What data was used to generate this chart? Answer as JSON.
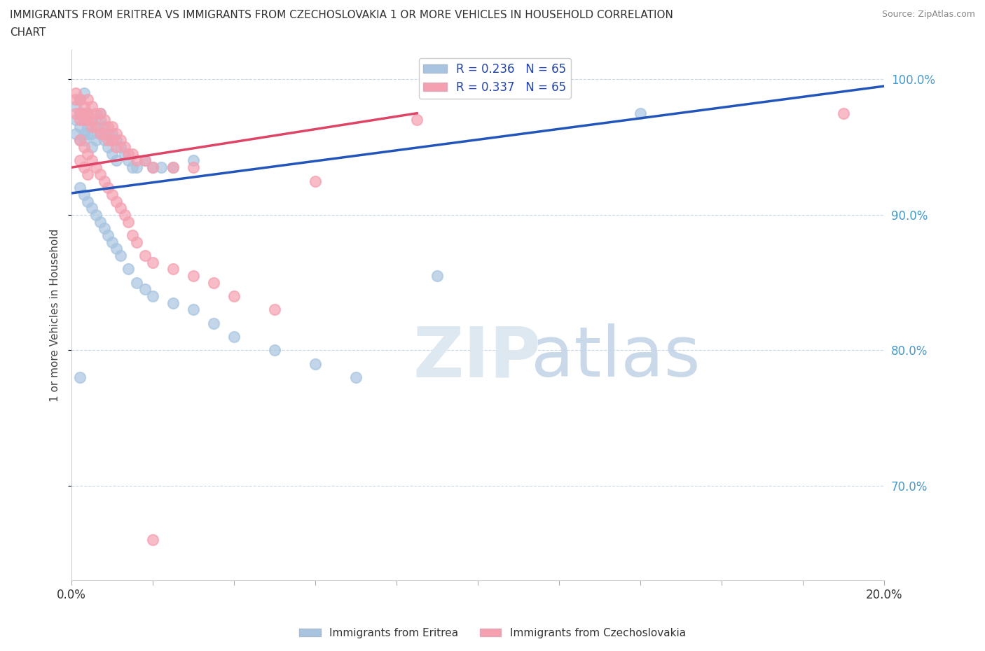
{
  "title_line1": "IMMIGRANTS FROM ERITREA VS IMMIGRANTS FROM CZECHOSLOVAKIA 1 OR MORE VEHICLES IN HOUSEHOLD CORRELATION",
  "title_line2": "CHART",
  "source_text": "Source: ZipAtlas.com",
  "ylabel": "1 or more Vehicles in Household",
  "xmin": 0.0,
  "xmax": 0.2,
  "ymin": 0.63,
  "ymax": 1.022,
  "right_yticks": [
    1.0,
    0.9,
    0.8,
    0.7
  ],
  "right_ytick_labels": [
    "100.0%",
    "90.0%",
    "80.0%",
    "70.0%"
  ],
  "eritrea_color": "#a8c4e0",
  "czechoslovakia_color": "#f4a0b0",
  "eritrea_line_color": "#2255bb",
  "czechoslovakia_line_color": "#dd4466",
  "legend_eritrea_label": "R = 0.236   N = 65",
  "legend_czechoslovakia_label": "R = 0.337   N = 65",
  "eritrea_trend": [
    0.0,
    0.2,
    0.916,
    0.995
  ],
  "czechoslovakia_trend": [
    0.0,
    0.085,
    0.935,
    0.975
  ],
  "eritrea_x": [
    0.001,
    0.001,
    0.001,
    0.002,
    0.002,
    0.002,
    0.002,
    0.003,
    0.003,
    0.003,
    0.003,
    0.004,
    0.004,
    0.004,
    0.005,
    0.005,
    0.005,
    0.006,
    0.006,
    0.007,
    0.007,
    0.007,
    0.008,
    0.008,
    0.009,
    0.009,
    0.01,
    0.01,
    0.011,
    0.011,
    0.012,
    0.013,
    0.014,
    0.015,
    0.016,
    0.018,
    0.02,
    0.022,
    0.025,
    0.03,
    0.002,
    0.003,
    0.004,
    0.005,
    0.006,
    0.007,
    0.008,
    0.009,
    0.01,
    0.011,
    0.012,
    0.014,
    0.016,
    0.018,
    0.02,
    0.025,
    0.03,
    0.035,
    0.04,
    0.05,
    0.06,
    0.07,
    0.09,
    0.14,
    0.002
  ],
  "eritrea_y": [
    0.97,
    0.96,
    0.98,
    0.975,
    0.965,
    0.955,
    0.985,
    0.97,
    0.96,
    0.955,
    0.99,
    0.975,
    0.965,
    0.96,
    0.97,
    0.96,
    0.95,
    0.965,
    0.955,
    0.97,
    0.96,
    0.975,
    0.965,
    0.955,
    0.96,
    0.95,
    0.96,
    0.945,
    0.955,
    0.94,
    0.95,
    0.945,
    0.94,
    0.935,
    0.935,
    0.94,
    0.935,
    0.935,
    0.935,
    0.94,
    0.92,
    0.915,
    0.91,
    0.905,
    0.9,
    0.895,
    0.89,
    0.885,
    0.88,
    0.875,
    0.87,
    0.86,
    0.85,
    0.845,
    0.84,
    0.835,
    0.83,
    0.82,
    0.81,
    0.8,
    0.79,
    0.78,
    0.855,
    0.975,
    0.78
  ],
  "czechoslovakia_x": [
    0.001,
    0.001,
    0.001,
    0.002,
    0.002,
    0.002,
    0.003,
    0.003,
    0.003,
    0.004,
    0.004,
    0.004,
    0.005,
    0.005,
    0.005,
    0.006,
    0.006,
    0.007,
    0.007,
    0.008,
    0.008,
    0.009,
    0.009,
    0.01,
    0.01,
    0.011,
    0.011,
    0.012,
    0.013,
    0.014,
    0.015,
    0.016,
    0.018,
    0.02,
    0.025,
    0.03,
    0.002,
    0.003,
    0.004,
    0.005,
    0.006,
    0.007,
    0.008,
    0.009,
    0.01,
    0.011,
    0.012,
    0.013,
    0.014,
    0.015,
    0.016,
    0.018,
    0.02,
    0.025,
    0.03,
    0.035,
    0.04,
    0.05,
    0.06,
    0.085,
    0.002,
    0.003,
    0.004,
    0.19,
    0.02
  ],
  "czechoslovakia_y": [
    0.985,
    0.975,
    0.99,
    0.985,
    0.975,
    0.97,
    0.98,
    0.975,
    0.97,
    0.985,
    0.975,
    0.97,
    0.98,
    0.97,
    0.965,
    0.975,
    0.965,
    0.975,
    0.96,
    0.97,
    0.96,
    0.965,
    0.955,
    0.965,
    0.955,
    0.96,
    0.95,
    0.955,
    0.95,
    0.945,
    0.945,
    0.94,
    0.94,
    0.935,
    0.935,
    0.935,
    0.955,
    0.95,
    0.945,
    0.94,
    0.935,
    0.93,
    0.925,
    0.92,
    0.915,
    0.91,
    0.905,
    0.9,
    0.895,
    0.885,
    0.88,
    0.87,
    0.865,
    0.86,
    0.855,
    0.85,
    0.84,
    0.83,
    0.925,
    0.97,
    0.94,
    0.935,
    0.93,
    0.975,
    0.66
  ]
}
